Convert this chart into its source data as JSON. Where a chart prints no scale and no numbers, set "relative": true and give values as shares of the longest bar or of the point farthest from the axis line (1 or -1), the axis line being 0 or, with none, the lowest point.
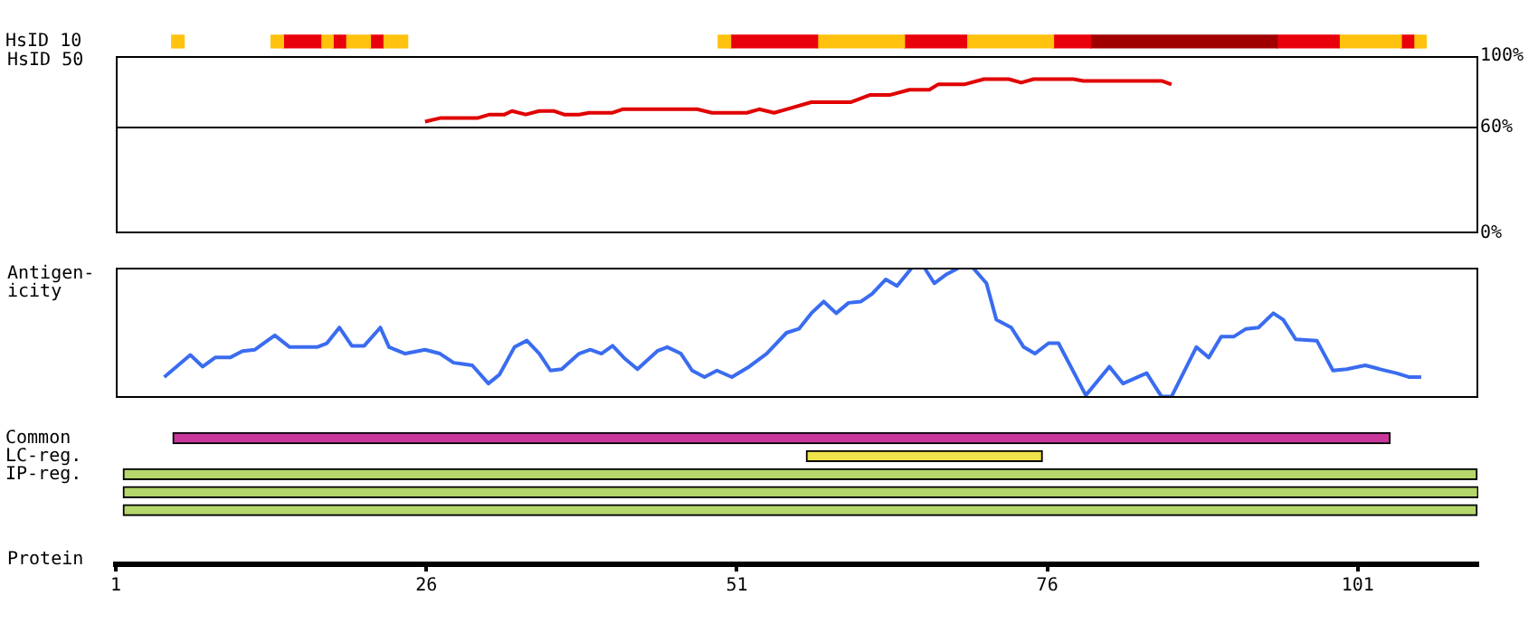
{
  "chart_data": [
    {
      "type": "bar",
      "orientation": "horizontal",
      "xlabel": "Protein",
      "categories": [
        "HsID 10",
        null,
        null,
        null,
        null,
        null,
        null,
        null,
        null,
        null,
        null,
        null,
        null,
        null,
        null,
        null,
        null,
        null,
        null,
        null,
        null,
        null,
        "Common",
        "LC-reg.",
        "IP-reg.",
        null,
        null
      ],
      "xlim": [
        1,
        110.7
      ],
      "xticks": [
        1,
        26,
        51,
        76,
        101
      ],
      "series": [
        {
          "color": "#ffc20e",
          "base": [
            5.5,
            null,
            null,
            null,
            null,
            null,
            null,
            null,
            null,
            null,
            null,
            null,
            null,
            null,
            null,
            null,
            null,
            null,
            null,
            null,
            null,
            null,
            null,
            null,
            null,
            null,
            null
          ],
          "values": [
            1,
            null,
            null,
            null,
            null,
            null,
            null,
            null,
            null,
            null,
            null,
            null,
            null,
            null,
            null,
            null,
            null,
            null,
            null,
            null,
            null,
            null,
            null,
            null,
            null,
            null,
            null
          ]
        },
        {
          "color": "#ffc20e",
          "base": [
            13.5,
            null,
            null,
            null,
            null,
            null,
            null,
            null,
            null,
            null,
            null,
            null,
            null,
            null,
            null,
            null,
            null,
            null,
            null,
            null,
            null,
            null,
            null,
            null,
            null,
            null,
            null
          ],
          "values": [
            1,
            null,
            null,
            null,
            null,
            null,
            null,
            null,
            null,
            null,
            null,
            null,
            null,
            null,
            null,
            null,
            null,
            null,
            null,
            null,
            null,
            null,
            null,
            null,
            null,
            null,
            null
          ]
        },
        {
          "color": "#e8000b",
          "base": [
            14.5,
            null,
            null,
            null,
            null,
            null,
            null,
            null,
            null,
            null,
            null,
            null,
            null,
            null,
            null,
            null,
            null,
            null,
            null,
            null,
            null,
            null,
            null,
            null,
            null,
            null,
            null
          ],
          "values": [
            3,
            null,
            null,
            null,
            null,
            null,
            null,
            null,
            null,
            null,
            null,
            null,
            null,
            null,
            null,
            null,
            null,
            null,
            null,
            null,
            null,
            null,
            null,
            null,
            null,
            null,
            null
          ]
        },
        {
          "color": "#ffc20e",
          "base": [
            17.5,
            null,
            null,
            null,
            null,
            null,
            null,
            null,
            null,
            null,
            null,
            null,
            null,
            null,
            null,
            null,
            null,
            null,
            null,
            null,
            null,
            null,
            null,
            null,
            null,
            null,
            null
          ],
          "values": [
            1,
            null,
            null,
            null,
            null,
            null,
            null,
            null,
            null,
            null,
            null,
            null,
            null,
            null,
            null,
            null,
            null,
            null,
            null,
            null,
            null,
            null,
            null,
            null,
            null,
            null,
            null
          ]
        },
        {
          "color": "#e8000b",
          "base": [
            18.5,
            null,
            null,
            null,
            null,
            null,
            null,
            null,
            null,
            null,
            null,
            null,
            null,
            null,
            null,
            null,
            null,
            null,
            null,
            null,
            null,
            null,
            null,
            null,
            null,
            null,
            null
          ],
          "values": [
            1,
            null,
            null,
            null,
            null,
            null,
            null,
            null,
            null,
            null,
            null,
            null,
            null,
            null,
            null,
            null,
            null,
            null,
            null,
            null,
            null,
            null,
            null,
            null,
            null,
            null,
            null
          ]
        },
        {
          "color": "#ffc20e",
          "base": [
            19.5,
            null,
            null,
            null,
            null,
            null,
            null,
            null,
            null,
            null,
            null,
            null,
            null,
            null,
            null,
            null,
            null,
            null,
            null,
            null,
            null,
            null,
            null,
            null,
            null,
            null,
            null
          ],
          "values": [
            2,
            null,
            null,
            null,
            null,
            null,
            null,
            null,
            null,
            null,
            null,
            null,
            null,
            null,
            null,
            null,
            null,
            null,
            null,
            null,
            null,
            null,
            null,
            null,
            null,
            null,
            null
          ]
        },
        {
          "color": "#e8000b",
          "base": [
            21.5,
            null,
            null,
            null,
            null,
            null,
            null,
            null,
            null,
            null,
            null,
            null,
            null,
            null,
            null,
            null,
            null,
            null,
            null,
            null,
            null,
            null,
            null,
            null,
            null,
            null,
            null
          ],
          "values": [
            1,
            null,
            null,
            null,
            null,
            null,
            null,
            null,
            null,
            null,
            null,
            null,
            null,
            null,
            null,
            null,
            null,
            null,
            null,
            null,
            null,
            null,
            null,
            null,
            null,
            null,
            null
          ]
        },
        {
          "color": "#ffc20e",
          "base": [
            22.5,
            null,
            null,
            null,
            null,
            null,
            null,
            null,
            null,
            null,
            null,
            null,
            null,
            null,
            null,
            null,
            null,
            null,
            null,
            null,
            null,
            null,
            null,
            null,
            null,
            null,
            null
          ],
          "values": [
            2,
            null,
            null,
            null,
            null,
            null,
            null,
            null,
            null,
            null,
            null,
            null,
            null,
            null,
            null,
            null,
            null,
            null,
            null,
            null,
            null,
            null,
            null,
            null,
            null,
            null,
            null
          ]
        },
        {
          "color": "#ffc20e",
          "base": [
            49.5,
            null,
            null,
            null,
            null,
            null,
            null,
            null,
            null,
            null,
            null,
            null,
            null,
            null,
            null,
            null,
            null,
            null,
            null,
            null,
            null,
            null,
            null,
            null,
            null,
            null,
            null
          ],
          "values": [
            1,
            null,
            null,
            null,
            null,
            null,
            null,
            null,
            null,
            null,
            null,
            null,
            null,
            null,
            null,
            null,
            null,
            null,
            null,
            null,
            null,
            null,
            null,
            null,
            null,
            null,
            null
          ]
        },
        {
          "color": "#e8000b",
          "base": [
            50.5,
            null,
            null,
            null,
            null,
            null,
            null,
            null,
            null,
            null,
            null,
            null,
            null,
            null,
            null,
            null,
            null,
            null,
            null,
            null,
            null,
            null,
            null,
            null,
            null,
            null,
            null
          ],
          "values": [
            7,
            null,
            null,
            null,
            null,
            null,
            null,
            null,
            null,
            null,
            null,
            null,
            null,
            null,
            null,
            null,
            null,
            null,
            null,
            null,
            null,
            null,
            null,
            null,
            null,
            null,
            null
          ]
        },
        {
          "color": "#ffc20e",
          "base": [
            57.5,
            null,
            null,
            null,
            null,
            null,
            null,
            null,
            null,
            null,
            null,
            null,
            null,
            null,
            null,
            null,
            null,
            null,
            null,
            null,
            null,
            null,
            null,
            null,
            null,
            null,
            null
          ],
          "values": [
            7,
            null,
            null,
            null,
            null,
            null,
            null,
            null,
            null,
            null,
            null,
            null,
            null,
            null,
            null,
            null,
            null,
            null,
            null,
            null,
            null,
            null,
            null,
            null,
            null,
            null,
            null
          ]
        },
        {
          "color": "#e8000b",
          "base": [
            64.5,
            null,
            null,
            null,
            null,
            null,
            null,
            null,
            null,
            null,
            null,
            null,
            null,
            null,
            null,
            null,
            null,
            null,
            null,
            null,
            null,
            null,
            null,
            null,
            null,
            null,
            null
          ],
          "values": [
            5,
            null,
            null,
            null,
            null,
            null,
            null,
            null,
            null,
            null,
            null,
            null,
            null,
            null,
            null,
            null,
            null,
            null,
            null,
            null,
            null,
            null,
            null,
            null,
            null,
            null,
            null
          ]
        },
        {
          "color": "#ffc20e",
          "base": [
            69.5,
            null,
            null,
            null,
            null,
            null,
            null,
            null,
            null,
            null,
            null,
            null,
            null,
            null,
            null,
            null,
            null,
            null,
            null,
            null,
            null,
            null,
            null,
            null,
            null,
            null,
            null
          ],
          "values": [
            7,
            null,
            null,
            null,
            null,
            null,
            null,
            null,
            null,
            null,
            null,
            null,
            null,
            null,
            null,
            null,
            null,
            null,
            null,
            null,
            null,
            null,
            null,
            null,
            null,
            null,
            null
          ]
        },
        {
          "color": "#e8000b",
          "base": [
            76.5,
            null,
            null,
            null,
            null,
            null,
            null,
            null,
            null,
            null,
            null,
            null,
            null,
            null,
            null,
            null,
            null,
            null,
            null,
            null,
            null,
            null,
            null,
            null,
            null,
            null,
            null
          ],
          "values": [
            3,
            null,
            null,
            null,
            null,
            null,
            null,
            null,
            null,
            null,
            null,
            null,
            null,
            null,
            null,
            null,
            null,
            null,
            null,
            null,
            null,
            null,
            null,
            null,
            null,
            null,
            null
          ]
        },
        {
          "color": "#a00000",
          "base": [
            79.5,
            null,
            null,
            null,
            null,
            null,
            null,
            null,
            null,
            null,
            null,
            null,
            null,
            null,
            null,
            null,
            null,
            null,
            null,
            null,
            null,
            null,
            null,
            null,
            null,
            null,
            null
          ],
          "values": [
            15,
            null,
            null,
            null,
            null,
            null,
            null,
            null,
            null,
            null,
            null,
            null,
            null,
            null,
            null,
            null,
            null,
            null,
            null,
            null,
            null,
            null,
            null,
            null,
            null,
            null,
            null
          ]
        },
        {
          "color": "#e8000b",
          "base": [
            94.5,
            null,
            null,
            null,
            null,
            null,
            null,
            null,
            null,
            null,
            null,
            null,
            null,
            null,
            null,
            null,
            null,
            null,
            null,
            null,
            null,
            null,
            null,
            null,
            null,
            null,
            null
          ],
          "values": [
            5,
            null,
            null,
            null,
            null,
            null,
            null,
            null,
            null,
            null,
            null,
            null,
            null,
            null,
            null,
            null,
            null,
            null,
            null,
            null,
            null,
            null,
            null,
            null,
            null,
            null,
            null
          ]
        },
        {
          "color": "#ffc20e",
          "base": [
            99.5,
            null,
            null,
            null,
            null,
            null,
            null,
            null,
            null,
            null,
            null,
            null,
            null,
            null,
            null,
            null,
            null,
            null,
            null,
            null,
            null,
            null,
            null,
            null,
            null,
            null,
            null
          ],
          "values": [
            5,
            null,
            null,
            null,
            null,
            null,
            null,
            null,
            null,
            null,
            null,
            null,
            null,
            null,
            null,
            null,
            null,
            null,
            null,
            null,
            null,
            null,
            null,
            null,
            null,
            null,
            null
          ]
        },
        {
          "color": "#e8000b",
          "base": [
            104.5,
            null,
            null,
            null,
            null,
            null,
            null,
            null,
            null,
            null,
            null,
            null,
            null,
            null,
            null,
            null,
            null,
            null,
            null,
            null,
            null,
            null,
            null,
            null,
            null,
            null,
            null
          ],
          "values": [
            1,
            null,
            null,
            null,
            null,
            null,
            null,
            null,
            null,
            null,
            null,
            null,
            null,
            null,
            null,
            null,
            null,
            null,
            null,
            null,
            null,
            null,
            null,
            null,
            null,
            null,
            null
          ]
        },
        {
          "color": "#ffc20e",
          "base": [
            105.5,
            null,
            null,
            null,
            null,
            null,
            null,
            null,
            null,
            null,
            null,
            null,
            null,
            null,
            null,
            null,
            null,
            null,
            null,
            null,
            null,
            null,
            null,
            null,
            null,
            null,
            null
          ],
          "values": [
            1,
            null,
            null,
            null,
            null,
            null,
            null,
            null,
            null,
            null,
            null,
            null,
            null,
            null,
            null,
            null,
            null,
            null,
            null,
            null,
            null,
            null,
            null,
            null,
            null,
            null,
            null
          ]
        },
        {
          "colors": [
            null,
            null,
            null,
            null,
            null,
            null,
            null,
            null,
            null,
            null,
            null,
            null,
            null,
            null,
            null,
            null,
            null,
            null,
            null,
            null,
            null,
            null,
            "#c8389a",
            "#f0e24a",
            "#b4d66a",
            "#b4d66a",
            "#b4d66a"
          ],
          "base": [
            null,
            null,
            null,
            null,
            null,
            null,
            null,
            null,
            null,
            null,
            null,
            null,
            null,
            null,
            null,
            null,
            null,
            null,
            null,
            null,
            null,
            null,
            5.6,
            56.6,
            1.6,
            1.6,
            1.6
          ],
          "values": [
            null,
            null,
            null,
            null,
            null,
            null,
            null,
            null,
            null,
            null,
            null,
            null,
            null,
            null,
            null,
            null,
            null,
            null,
            null,
            null,
            null,
            null,
            98,
            19,
            109,
            109.1,
            109
          ]
        }
      ]
    },
    {
      "type": "line",
      "ylabel": "HsID 50",
      "xlim": [
        1,
        110.7
      ],
      "ylim": [
        0,
        100
      ],
      "yticks": [
        {
          "value": 0,
          "label": "0%"
        },
        {
          "value": 60,
          "label": "60%"
        },
        {
          "value": 100,
          "label": "100%"
        }
      ],
      "tick_labels": "y",
      "ref_lines": [
        {
          "axis": "y",
          "value": 60,
          "color": "#000000"
        }
      ],
      "series": [
        {
          "color": "#e00000",
          "x": [
            25.9,
            27.1,
            30.1,
            31.1,
            32.3,
            32.9,
            34.0,
            35.1,
            36.3,
            37.1,
            38.3,
            39.1,
            41.0,
            41.8,
            47.8,
            49.0,
            51.8,
            52.8,
            54.0,
            55.0,
            57.0,
            60.2,
            61.7,
            63.3,
            64.9,
            66.5,
            67.2,
            69.3,
            70.9,
            72.9,
            73.9,
            74.9,
            78.1,
            78.9,
            85.2,
            86.0
          ],
          "values": [
            63,
            65,
            65,
            67,
            67,
            69,
            67,
            69,
            69,
            67,
            67,
            68,
            68,
            70,
            70,
            68,
            68,
            70,
            68,
            70,
            74,
            74,
            78,
            78,
            81,
            81,
            84,
            84,
            87,
            87,
            85,
            87,
            87,
            86,
            86,
            84
          ]
        }
      ]
    },
    {
      "type": "line",
      "ylabel": "Antigen-icity",
      "relative": true,
      "xlim": [
        1,
        110.7
      ],
      "tick_labels": false,
      "series": [
        {
          "color": "#3a6cf0",
          "x": [
            4.9,
            7.0,
            8.0,
            9.0,
            10.2,
            11.2,
            12.2,
            13.8,
            15.0,
            17.2,
            18.0,
            19.0,
            20.0,
            21.0,
            22.3,
            23.0,
            24.3,
            25.9,
            27.1,
            28.2,
            29.7,
            31.0,
            31.9,
            33.1,
            34.1,
            35.1,
            36.0,
            36.9,
            38.3,
            39.2,
            40.1,
            41.0,
            42.0,
            43.0,
            44.6,
            45.4,
            46.5,
            47.4,
            48.4,
            49.4,
            50.6,
            52.0,
            53.4,
            55.0,
            56.0,
            57.0,
            58.0,
            59.0,
            60.0,
            61.0,
            61.9,
            63.0,
            63.9,
            65.1,
            66.1,
            66.9,
            67.9,
            68.9,
            70.0,
            71.1,
            71.9,
            73.1,
            74.1,
            75.0,
            76.1,
            76.9,
            79.1,
            81.0,
            82.1,
            84.0,
            85.2,
            86.0,
            88.0,
            89.0,
            90.0,
            91.0,
            92.0,
            93.0,
            94.2,
            95.0,
            96.0,
            97.7,
            99.0,
            100.1,
            101.6,
            102.8,
            104.1,
            105.1,
            106.1
          ],
          "values": [
            0.16,
            0.33,
            0.24,
            0.31,
            0.31,
            0.36,
            0.37,
            0.48,
            0.39,
            0.39,
            0.42,
            0.54,
            0.4,
            0.4,
            0.54,
            0.39,
            0.34,
            0.37,
            0.34,
            0.27,
            0.25,
            0.11,
            0.18,
            0.39,
            0.44,
            0.34,
            0.21,
            0.22,
            0.34,
            0.37,
            0.34,
            0.4,
            0.3,
            0.22,
            0.36,
            0.39,
            0.34,
            0.21,
            0.16,
            0.21,
            0.16,
            0.24,
            0.34,
            0.5,
            0.53,
            0.65,
            0.74,
            0.65,
            0.73,
            0.74,
            0.8,
            0.91,
            0.86,
            1,
            1,
            0.88,
            0.95,
            1,
            1,
            0.88,
            0.6,
            0.54,
            0.39,
            0.34,
            0.42,
            0.42,
            0.02,
            0.24,
            0.11,
            0.19,
            0.01,
            0.01,
            0.39,
            0.31,
            0.47,
            0.47,
            0.53,
            0.54,
            0.65,
            0.6,
            0.45,
            0.44,
            0.21,
            0.22,
            0.25,
            0.22,
            0.19,
            0.16,
            0.16
          ]
        }
      ]
    }
  ]
}
